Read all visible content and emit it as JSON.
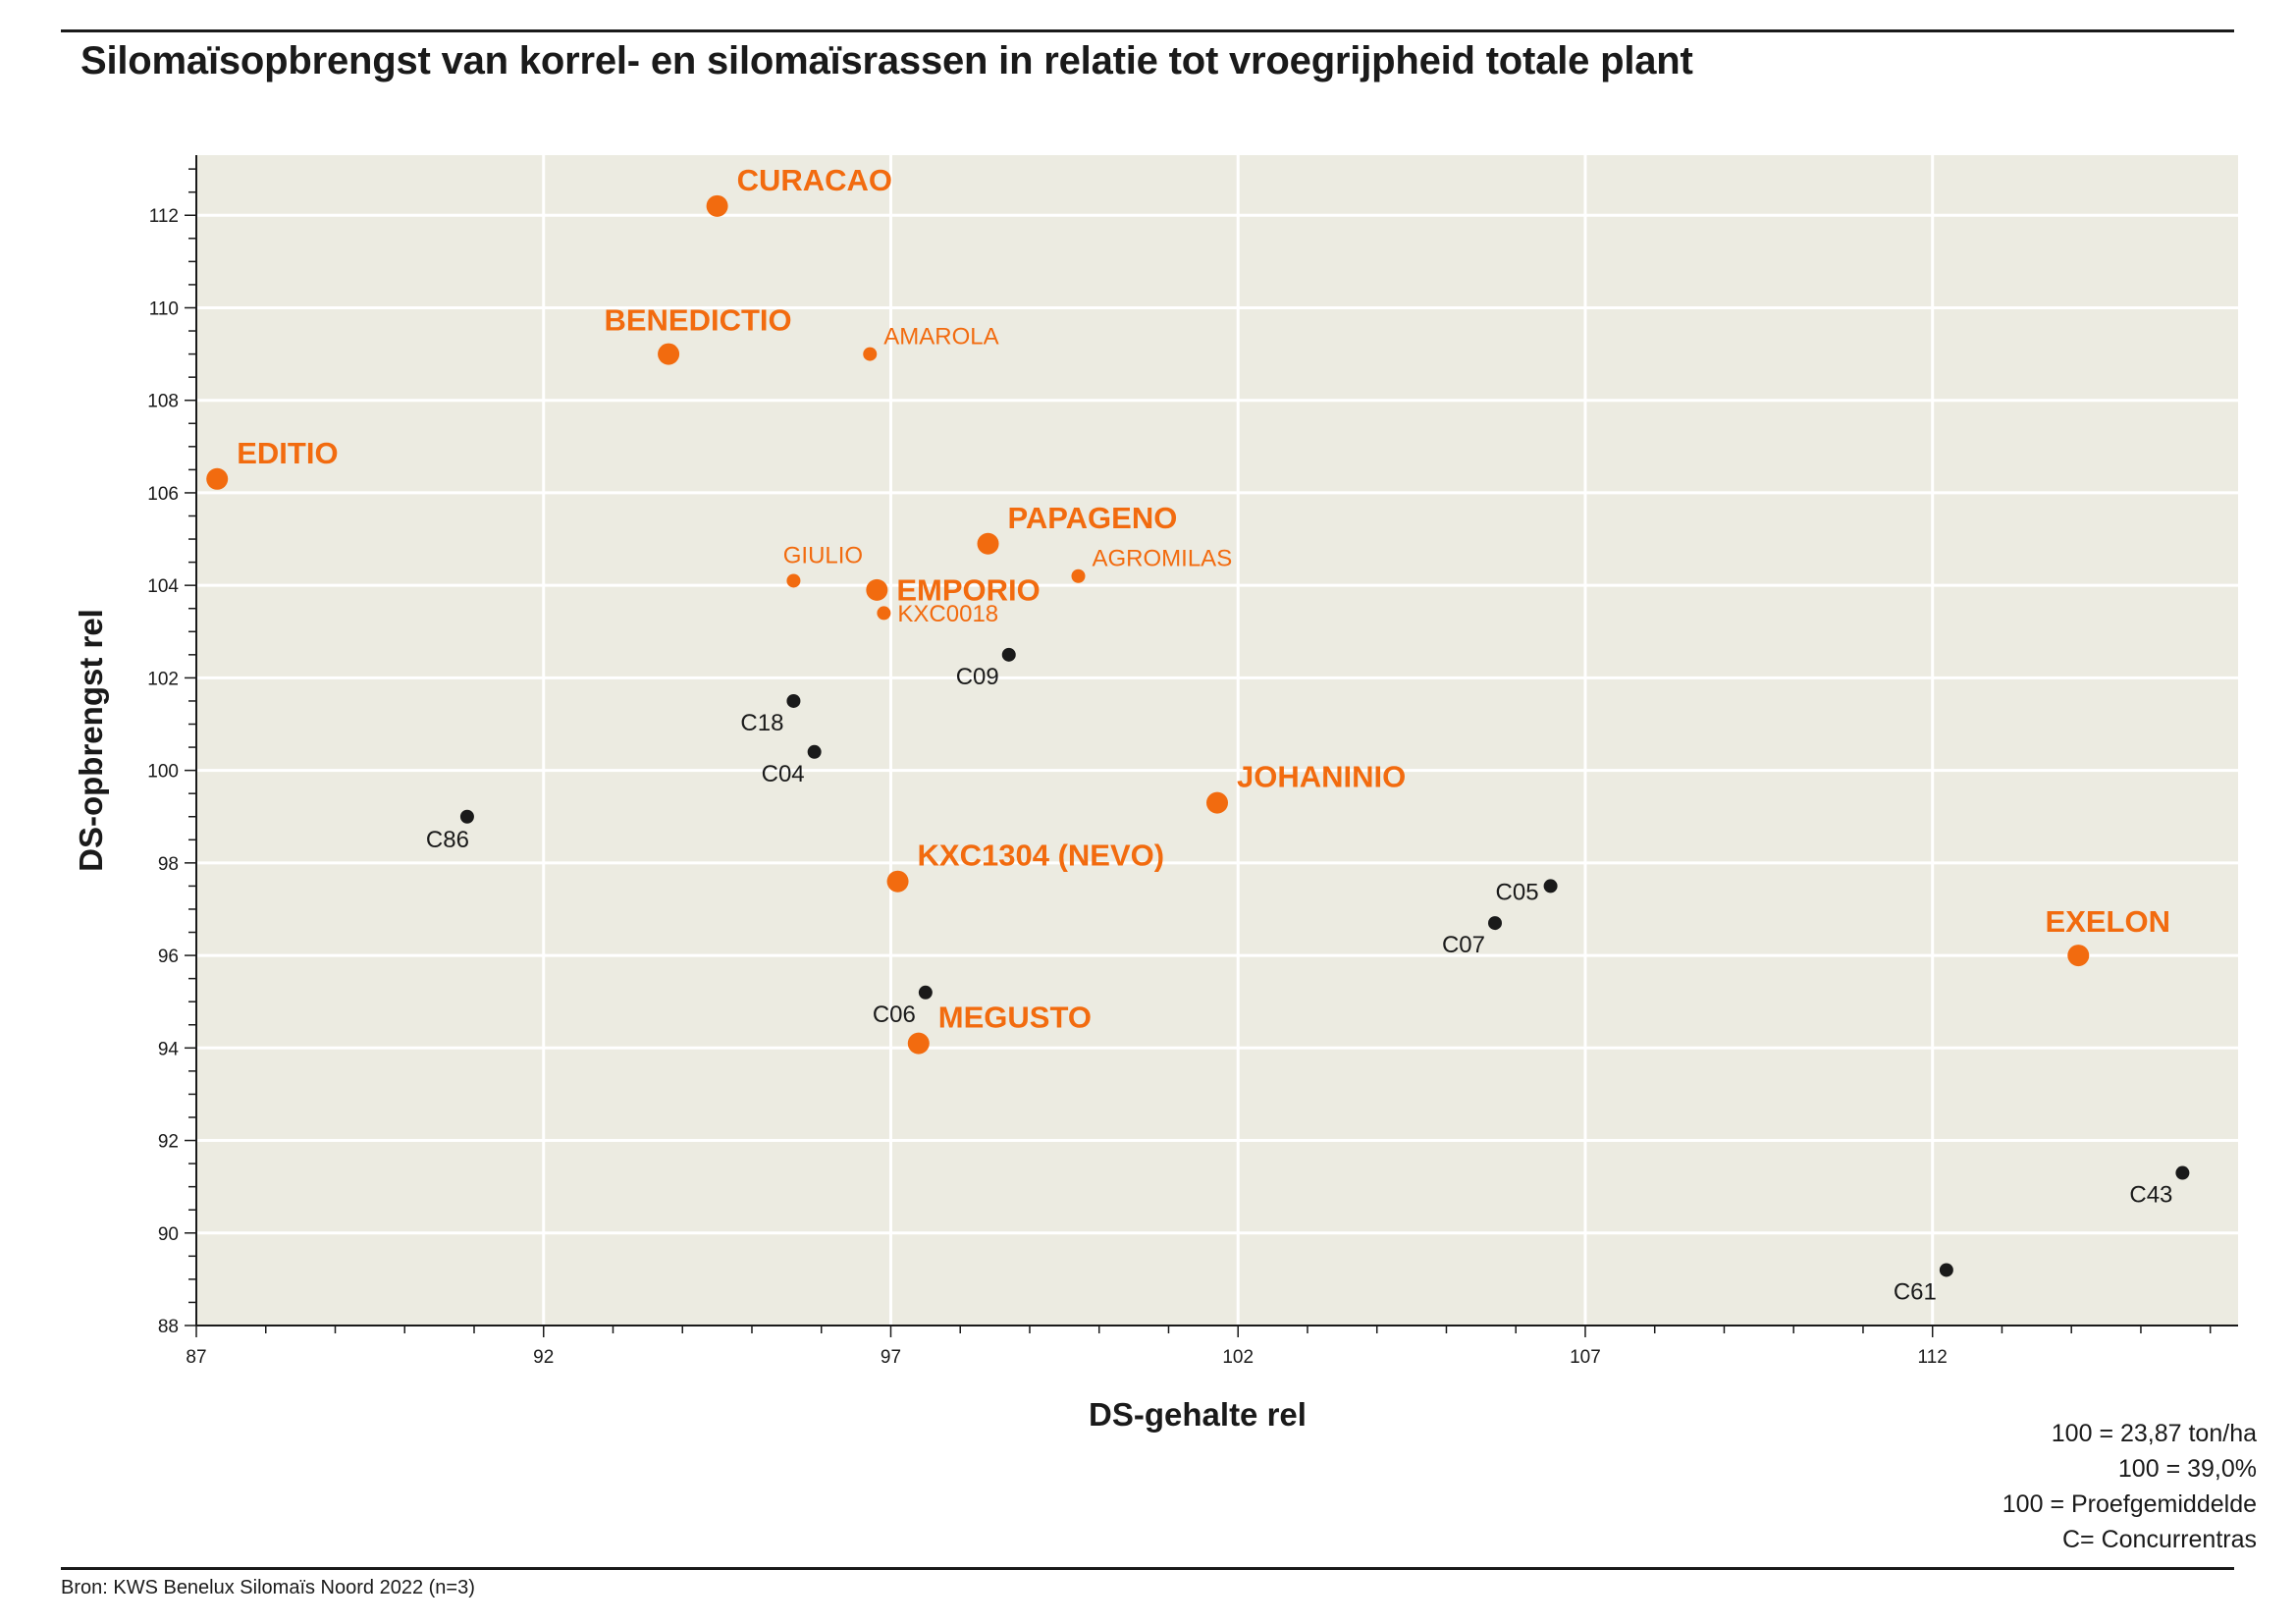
{
  "title": "Silomaïsopbrengst van korrel- en silomaïsrassen in relatie tot vroegrijpheid totale plant",
  "notes": [
    "100 = 23,87 ton/ha",
    "100 = 39,0%",
    "100 = Proefgemiddelde",
    "C= Concurrentras"
  ],
  "source": "Bron: KWS Benelux Silomaïs Noord 2022 (n=3)",
  "colors": {
    "kws": "#f26b0f",
    "competitor": "#1a1a1a",
    "plot_bg": "#ecebe1",
    "grid": "#ffffff"
  },
  "chart_data": {
    "type": "scatter",
    "xlabel": "DS-gehalte rel",
    "ylabel": "DS-opbrengst rel",
    "xlim": [
      87,
      116.4
    ],
    "ylim": [
      88,
      113.3
    ],
    "xticks": [
      87,
      92,
      97,
      102,
      107,
      112
    ],
    "yticks": [
      88,
      90,
      92,
      94,
      96,
      98,
      100,
      102,
      104,
      106,
      108,
      110,
      112
    ],
    "grid": true,
    "points": [
      {
        "label": "CURACAO",
        "x": 94.5,
        "y": 112.2,
        "group": "kws-main",
        "pos": "ne"
      },
      {
        "label": "BENEDICTIO",
        "x": 93.8,
        "y": 109.0,
        "group": "kws-main",
        "pos": "n"
      },
      {
        "label": "AMAROLA",
        "x": 96.7,
        "y": 109.0,
        "group": "kws-minor",
        "pos": "ne"
      },
      {
        "label": "EDITIO",
        "x": 87.3,
        "y": 106.3,
        "group": "kws-main",
        "pos": "ne"
      },
      {
        "label": "PAPAGENO",
        "x": 98.4,
        "y": 104.9,
        "group": "kws-main",
        "pos": "ne"
      },
      {
        "label": "GIULIO",
        "x": 95.6,
        "y": 104.1,
        "group": "kws-minor",
        "pos": "n"
      },
      {
        "label": "EMPORIO",
        "x": 96.8,
        "y": 103.9,
        "group": "kws-main",
        "pos": "e"
      },
      {
        "label": "AGROMILAS",
        "x": 99.7,
        "y": 104.2,
        "group": "kws-minor",
        "pos": "ne"
      },
      {
        "label": "KXC0018",
        "x": 96.9,
        "y": 103.4,
        "group": "kws-minor",
        "pos": "e"
      },
      {
        "label": "C09",
        "x": 98.7,
        "y": 102.5,
        "group": "comp",
        "pos": "sw"
      },
      {
        "label": "C18",
        "x": 95.6,
        "y": 101.5,
        "group": "comp",
        "pos": "sw"
      },
      {
        "label": "C04",
        "x": 95.9,
        "y": 100.4,
        "group": "comp",
        "pos": "sw"
      },
      {
        "label": "JOHANINIO",
        "x": 101.7,
        "y": 99.3,
        "group": "kws-main",
        "pos": "ne"
      },
      {
        "label": "C86",
        "x": 90.9,
        "y": 99.0,
        "group": "comp",
        "pos": "s"
      },
      {
        "label": "KXC1304 (NEVO)",
        "x": 97.1,
        "y": 97.6,
        "group": "kws-main",
        "pos": "ne"
      },
      {
        "label": "C05",
        "x": 106.5,
        "y": 97.5,
        "group": "comp",
        "pos": "w"
      },
      {
        "label": "C07",
        "x": 105.7,
        "y": 96.7,
        "group": "comp",
        "pos": "sw"
      },
      {
        "label": "EXELON",
        "x": 114.1,
        "y": 96.0,
        "group": "kws-main",
        "pos": "n"
      },
      {
        "label": "C06",
        "x": 97.5,
        "y": 95.2,
        "group": "comp",
        "pos": "sw"
      },
      {
        "label": "MEGUSTO",
        "x": 97.4,
        "y": 94.1,
        "group": "kws-main",
        "pos": "ne"
      },
      {
        "label": "C43",
        "x": 115.6,
        "y": 91.3,
        "group": "comp",
        "pos": "sw"
      },
      {
        "label": "C61",
        "x": 112.2,
        "y": 89.2,
        "group": "comp",
        "pos": "sw"
      }
    ]
  }
}
